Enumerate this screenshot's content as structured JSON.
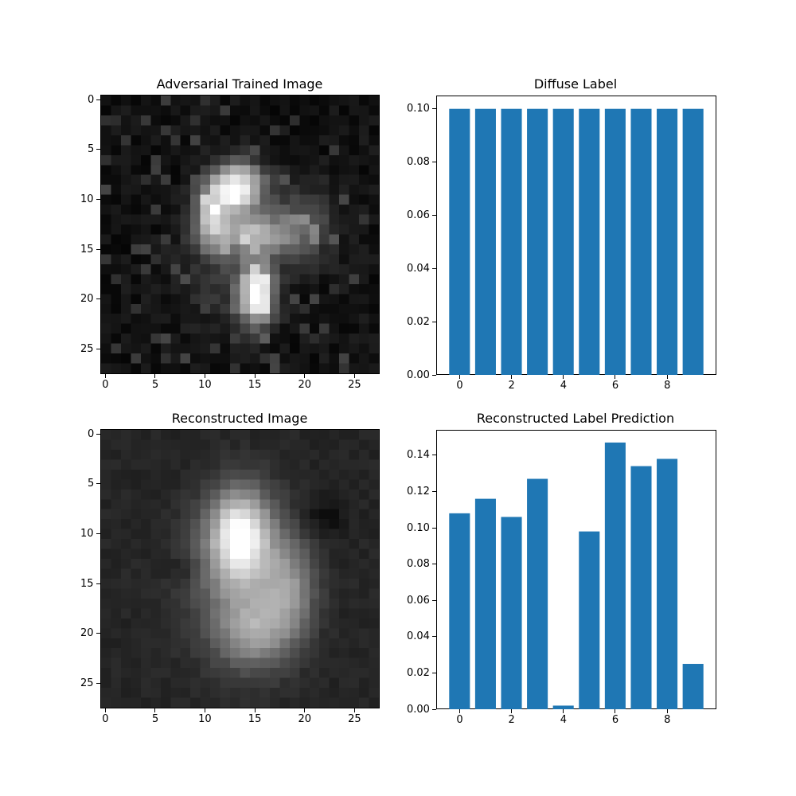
{
  "chart_data": [
    {
      "type": "heatmap",
      "title": "Adversarial Trained Image",
      "colormap": "gray",
      "size": [
        28,
        28
      ],
      "xticks": [
        0,
        5,
        10,
        15,
        20,
        25
      ],
      "yticks": [
        0,
        5,
        10,
        15,
        20,
        25
      ],
      "grid": false
    },
    {
      "type": "bar",
      "title": "Diffuse Label",
      "categories": [
        0,
        1,
        2,
        3,
        4,
        5,
        6,
        7,
        8,
        9
      ],
      "values": [
        0.1,
        0.1,
        0.1,
        0.1,
        0.1,
        0.1,
        0.1,
        0.1,
        0.1,
        0.1
      ],
      "xticks": [
        "0",
        "2",
        "4",
        "6",
        "8"
      ],
      "yticks": [
        "0.00",
        "0.02",
        "0.04",
        "0.06",
        "0.08",
        "0.10"
      ],
      "ylim": [
        0,
        0.105
      ],
      "xlim": [
        -0.9,
        9.9
      ],
      "color": "#1f77b4",
      "grid": false
    },
    {
      "type": "heatmap",
      "title": "Reconstructed Image",
      "colormap": "gray",
      "size": [
        28,
        28
      ],
      "xticks": [
        0,
        5,
        10,
        15,
        20,
        25
      ],
      "yticks": [
        0,
        5,
        10,
        15,
        20,
        25
      ],
      "grid": false
    },
    {
      "type": "bar",
      "title": "Reconstructed Label Prediction",
      "categories": [
        0,
        1,
        2,
        3,
        4,
        5,
        6,
        7,
        8,
        9
      ],
      "values": [
        0.108,
        0.116,
        0.106,
        0.127,
        0.002,
        0.098,
        0.147,
        0.134,
        0.138,
        0.025
      ],
      "xticks": [
        "0",
        "2",
        "4",
        "6",
        "8"
      ],
      "yticks": [
        "0.00",
        "0.02",
        "0.04",
        "0.06",
        "0.08",
        "0.10",
        "0.12",
        "0.14"
      ],
      "ylim": [
        0,
        0.154
      ],
      "xlim": [
        -0.9,
        9.9
      ],
      "color": "#1f77b4",
      "grid": false
    }
  ]
}
